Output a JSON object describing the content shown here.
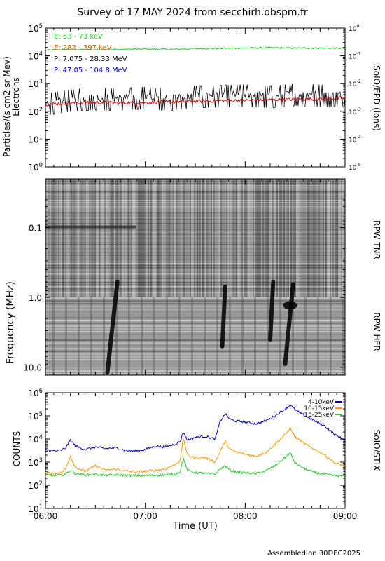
{
  "title": "Survey of 17 MAY 2024 from secchirh.obspm.fr",
  "footer": "Assembled on 30DEC2025",
  "chart_data": [
    {
      "type": "line",
      "panel": "particles",
      "ylabel_left": "Particles/(s cm2 sr Mev)",
      "ylabel_left2": "Electrons",
      "ylabel_right": "SoIO/EPD (ions)",
      "yscale": "log",
      "ylim": [
        1,
        100000
      ],
      "right_ylim": [
        1e-05,
        1
      ],
      "left_ticks": [
        {
          "v": 1,
          "b": "10",
          "e": "0"
        },
        {
          "v": 10,
          "b": "10",
          "e": "1"
        },
        {
          "v": 100,
          "b": "10",
          "e": "2"
        },
        {
          "v": 1000,
          "b": "10",
          "e": "3"
        },
        {
          "v": 10000,
          "b": "10",
          "e": "4"
        },
        {
          "v": 100000,
          "b": "10",
          "e": "5"
        }
      ],
      "right_ticks": [
        {
          "v": 1e-05,
          "b": "10",
          "e": "-5"
        },
        {
          "v": 0.0001,
          "b": "10",
          "e": "-4"
        },
        {
          "v": 0.001,
          "b": "10",
          "e": "-3"
        },
        {
          "v": 0.01,
          "b": "10",
          "e": "-2"
        },
        {
          "v": 0.1,
          "b": "10",
          "e": "-1"
        },
        {
          "v": 1,
          "b": "10",
          "e": "0"
        }
      ],
      "xlim": [
        6.0,
        9.0
      ],
      "series": [
        {
          "name": "E: 53 - 73 keV",
          "color": "#22cc22",
          "axis": "left",
          "x": [
            6.0,
            6.25,
            6.5,
            6.75,
            7.0,
            7.25,
            7.5,
            7.75,
            8.0,
            8.25,
            8.5,
            8.75,
            9.0
          ],
          "values": [
            16000,
            17000,
            16500,
            17000,
            17500,
            17000,
            18000,
            18500,
            19000,
            19500,
            19000,
            19000,
            18500
          ]
        },
        {
          "name": "E: 282 - 397 keV",
          "color": "#cc6600",
          "axis": "left",
          "x": [],
          "values": []
        },
        {
          "name": "P: 7.075 - 28.33 MeV",
          "color": "#000000",
          "axis": "left",
          "x": [
            6.0,
            6.25,
            6.5,
            6.75,
            7.0,
            7.25,
            7.5,
            7.75,
            8.0,
            8.25,
            8.5,
            8.75,
            9.0
          ],
          "values": [
            200,
            280,
            320,
            300,
            350,
            300,
            380,
            400,
            420,
            380,
            450,
            420,
            400
          ]
        },
        {
          "name": "P: 47.05 - 104.8 MeV",
          "color": "#0000cc",
          "axis": "left",
          "x": [],
          "values": []
        },
        {
          "name": "",
          "color": "#dd0000",
          "axis": "left",
          "x": [
            6.0,
            6.25,
            6.5,
            6.75,
            7.0,
            7.25,
            7.5,
            7.75,
            8.0,
            8.25,
            8.5,
            8.75,
            9.0
          ],
          "values": [
            180,
            200,
            210,
            200,
            210,
            220,
            230,
            240,
            250,
            260,
            270,
            280,
            300
          ]
        }
      ]
    },
    {
      "type": "heatmap",
      "panel": "radio",
      "ylabel": "Frequency (MHz)",
      "right_label_top": "RPW TNR",
      "right_label_bottom": "RPW HFR",
      "yscale": "log",
      "ylim": [
        13,
        0.02
      ],
      "y_ticks": [
        {
          "v": 0.1,
          "label": "0.1"
        },
        {
          "v": 1.0,
          "label": "1.0"
        },
        {
          "v": 10.0,
          "label": "10.0"
        }
      ],
      "xlim": [
        6.0,
        9.0
      ],
      "bursts": [
        {
          "t_start": 6.72,
          "t_end": 6.62,
          "f_start": 0.6,
          "f_end": 12
        },
        {
          "t_start": 8.48,
          "t_end": 8.4,
          "f_start": 0.65,
          "f_end": 9
        },
        {
          "t_start": 7.8,
          "t_end": 7.77,
          "f_start": 0.7,
          "f_end": 5
        },
        {
          "t_start": 8.28,
          "t_end": 8.25,
          "f_start": 0.6,
          "f_end": 4
        }
      ]
    },
    {
      "type": "line",
      "panel": "xray",
      "ylabel": "COUNTS",
      "ylabel_right": "SoIO/STIX",
      "yscale": "log",
      "ylim": [
        10,
        1000000
      ],
      "y_ticks": [
        {
          "v": 10,
          "b": "10",
          "e": "1"
        },
        {
          "v": 100,
          "b": "10",
          "e": "2"
        },
        {
          "v": 1000,
          "b": "10",
          "e": "3"
        },
        {
          "v": 10000,
          "b": "10",
          "e": "4"
        },
        {
          "v": 100000,
          "b": "10",
          "e": "5"
        },
        {
          "v": 1000000,
          "b": "10",
          "e": "6"
        }
      ],
      "xlim": [
        6.0,
        9.0
      ],
      "x_tick_labels": [
        {
          "v": 6.0,
          "label": "06:00"
        },
        {
          "v": 7.0,
          "label": "07:00"
        },
        {
          "v": 8.0,
          "label": "08:00"
        },
        {
          "v": 9.0,
          "label": "09:00"
        }
      ],
      "xlabel": "Time (UT)",
      "series": [
        {
          "name": "4-10keV",
          "color": "#0000cc",
          "x": [
            6.0,
            6.05,
            6.1,
            6.15,
            6.2,
            6.25,
            6.3,
            6.4,
            6.5,
            6.6,
            6.7,
            6.8,
            6.9,
            7.0,
            7.1,
            7.2,
            7.3,
            7.35,
            7.38,
            7.42,
            7.5,
            7.6,
            7.7,
            7.75,
            7.8,
            7.85,
            7.9,
            8.0,
            8.1,
            8.2,
            8.3,
            8.4,
            8.45,
            8.5,
            8.6,
            8.7,
            8.8,
            8.9,
            9.0
          ],
          "values": [
            3500,
            3200,
            3000,
            3200,
            4000,
            9000,
            5000,
            3500,
            4500,
            3800,
            4200,
            3200,
            3000,
            3500,
            5000,
            4500,
            6000,
            8000,
            20000,
            9000,
            12000,
            13000,
            10000,
            60000,
            120000,
            70000,
            60000,
            55000,
            45000,
            60000,
            100000,
            200000,
            300000,
            180000,
            100000,
            60000,
            35000,
            15000,
            9000
          ]
        },
        {
          "name": "10-15keV",
          "color": "#ff9900",
          "x": [
            6.0,
            6.05,
            6.1,
            6.15,
            6.2,
            6.25,
            6.3,
            6.4,
            6.5,
            6.6,
            6.7,
            6.8,
            6.9,
            7.0,
            7.1,
            7.2,
            7.3,
            7.35,
            7.38,
            7.42,
            7.5,
            7.6,
            7.7,
            7.75,
            7.8,
            7.85,
            7.9,
            8.0,
            8.1,
            8.2,
            8.3,
            8.4,
            8.45,
            8.5,
            8.6,
            8.7,
            8.8,
            8.9,
            9.0
          ],
          "values": [
            350,
            330,
            320,
            340,
            500,
            1800,
            600,
            400,
            700,
            450,
            500,
            420,
            380,
            400,
            450,
            500,
            800,
            1200,
            12000,
            2000,
            1500,
            1600,
            1000,
            3000,
            8000,
            3500,
            2800,
            2200,
            1800,
            2500,
            6000,
            15000,
            30000,
            12000,
            6000,
            3500,
            2000,
            900,
            700
          ]
        },
        {
          "name": "15-25keV",
          "color": "#22cc22",
          "x": [
            6.0,
            6.05,
            6.1,
            6.15,
            6.2,
            6.25,
            6.3,
            6.4,
            6.5,
            6.6,
            6.7,
            6.8,
            6.9,
            7.0,
            7.1,
            7.2,
            7.3,
            7.35,
            7.38,
            7.42,
            7.5,
            7.6,
            7.7,
            7.75,
            7.8,
            7.85,
            7.9,
            8.0,
            8.1,
            8.2,
            8.3,
            8.4,
            8.45,
            8.5,
            8.6,
            8.7,
            8.8,
            8.9,
            9.0
          ],
          "values": [
            280,
            270,
            260,
            270,
            300,
            450,
            320,
            280,
            300,
            270,
            280,
            270,
            260,
            260,
            270,
            280,
            300,
            400,
            1500,
            450,
            350,
            330,
            300,
            500,
            700,
            450,
            380,
            350,
            320,
            400,
            700,
            1600,
            2500,
            900,
            500,
            350,
            300,
            260,
            250
          ]
        }
      ]
    }
  ]
}
